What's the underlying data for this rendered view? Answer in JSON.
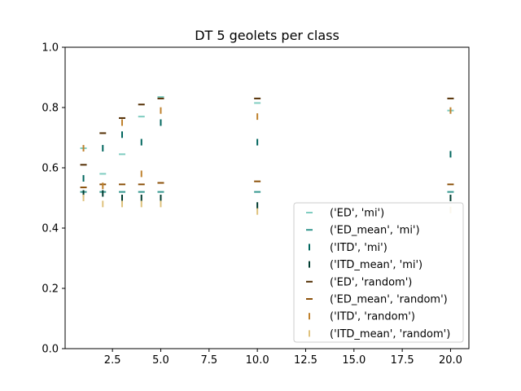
{
  "chart_data": {
    "type": "scatter",
    "title": "DT 5 geolets per class",
    "xlabel": "",
    "ylabel": "",
    "xlim": [
      0.05,
      20.95
    ],
    "ylim": [
      0.0,
      1.0
    ],
    "xticks": [
      2.5,
      5.0,
      7.5,
      10.0,
      12.5,
      15.0,
      17.5,
      20.0
    ],
    "xtick_labels": [
      "2.5",
      "5.0",
      "7.5",
      "10.0",
      "12.5",
      "15.0",
      "17.5",
      "20.0"
    ],
    "yticks": [
      0.0,
      0.2,
      0.4,
      0.6,
      0.8,
      1.0
    ],
    "ytick_labels": [
      "0.0",
      "0.2",
      "0.4",
      "0.6",
      "0.8",
      "1.0"
    ],
    "grid": false,
    "legend_position": "lower-right",
    "x": [
      1,
      2,
      3,
      4,
      5,
      10,
      20
    ],
    "series": [
      {
        "name": "('ED', 'mi')",
        "marker": "_",
        "color": "#80cdc1",
        "values": [
          0.665,
          0.58,
          0.645,
          0.77,
          0.835,
          0.815,
          0.79
        ]
      },
      {
        "name": "('ED_mean', 'mi')",
        "marker": "_",
        "color": "#35978f",
        "values": [
          0.52,
          0.52,
          0.52,
          0.52,
          0.52,
          0.52,
          0.52
        ]
      },
      {
        "name": "('ITD', 'mi')",
        "marker": "|",
        "color": "#01665e",
        "values": [
          0.565,
          0.665,
          0.71,
          0.685,
          0.75,
          0.685,
          0.645
        ]
      },
      {
        "name": "('ITD_mean', 'mi')",
        "marker": "|",
        "color": "#003c30",
        "values": [
          0.515,
          0.515,
          0.5,
          0.5,
          0.5,
          0.475,
          0.5
        ]
      },
      {
        "name": "('ED', 'random')",
        "marker": "_",
        "color": "#543005",
        "values": [
          0.61,
          0.715,
          0.765,
          0.81,
          0.83,
          0.83,
          0.83
        ]
      },
      {
        "name": "('ED_mean', 'random')",
        "marker": "_",
        "color": "#8c510a",
        "values": [
          0.535,
          0.545,
          0.545,
          0.545,
          0.55,
          0.555,
          0.545
        ]
      },
      {
        "name": "('ITD', 'random')",
        "marker": "|",
        "color": "#bf812d",
        "values": [
          0.665,
          0.54,
          0.75,
          0.58,
          0.79,
          0.77,
          0.79
        ]
      },
      {
        "name": "('ITD_mean', 'random')",
        "marker": "|",
        "color": "#dfc27d",
        "values": [
          0.5,
          0.48,
          0.48,
          0.48,
          0.48,
          0.455,
          0.46
        ]
      }
    ]
  }
}
